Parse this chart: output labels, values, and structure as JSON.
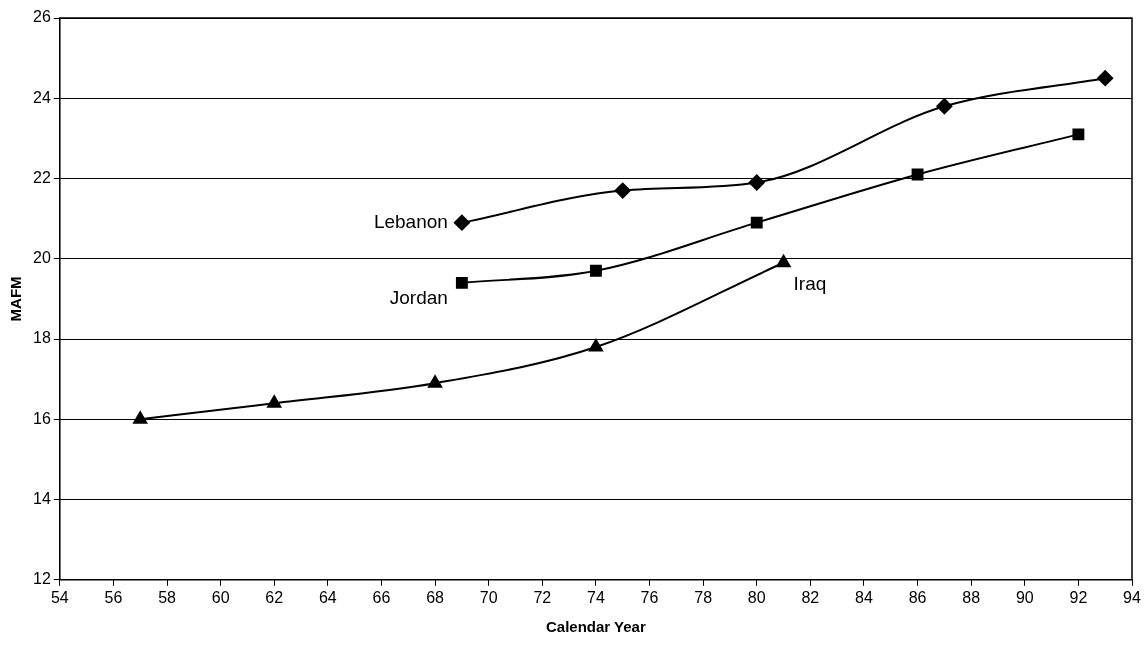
{
  "chart_data": {
    "type": "line",
    "xlabel": "Calendar Year",
    "ylabel": "MAFM",
    "xlim": [
      54,
      94
    ],
    "xticks": [
      54,
      56,
      58,
      60,
      62,
      64,
      66,
      68,
      70,
      72,
      74,
      76,
      78,
      80,
      82,
      84,
      86,
      88,
      90,
      92,
      94
    ],
    "ylim": [
      12,
      26
    ],
    "yticks": [
      12,
      14,
      16,
      18,
      20,
      22,
      24,
      26
    ],
    "grid": "y",
    "legend": false,
    "series": [
      {
        "name": "Lebanon",
        "color": "#000000",
        "marker": "diamond",
        "x": [
          69,
          75,
          80,
          87,
          93
        ],
        "values": [
          20.9,
          21.7,
          21.9,
          23.8,
          24.5
        ]
      },
      {
        "name": "Jordan",
        "color": "#000000",
        "marker": "square",
        "x": [
          69,
          74,
          80,
          86,
          92
        ],
        "values": [
          19.4,
          19.7,
          20.9,
          22.1,
          23.1
        ]
      },
      {
        "name": "Iraq",
        "color": "#000000",
        "marker": "triangle",
        "x": [
          57,
          62,
          68,
          74,
          81
        ],
        "values": [
          16.0,
          16.4,
          16.9,
          17.8,
          19.9
        ]
      }
    ]
  }
}
